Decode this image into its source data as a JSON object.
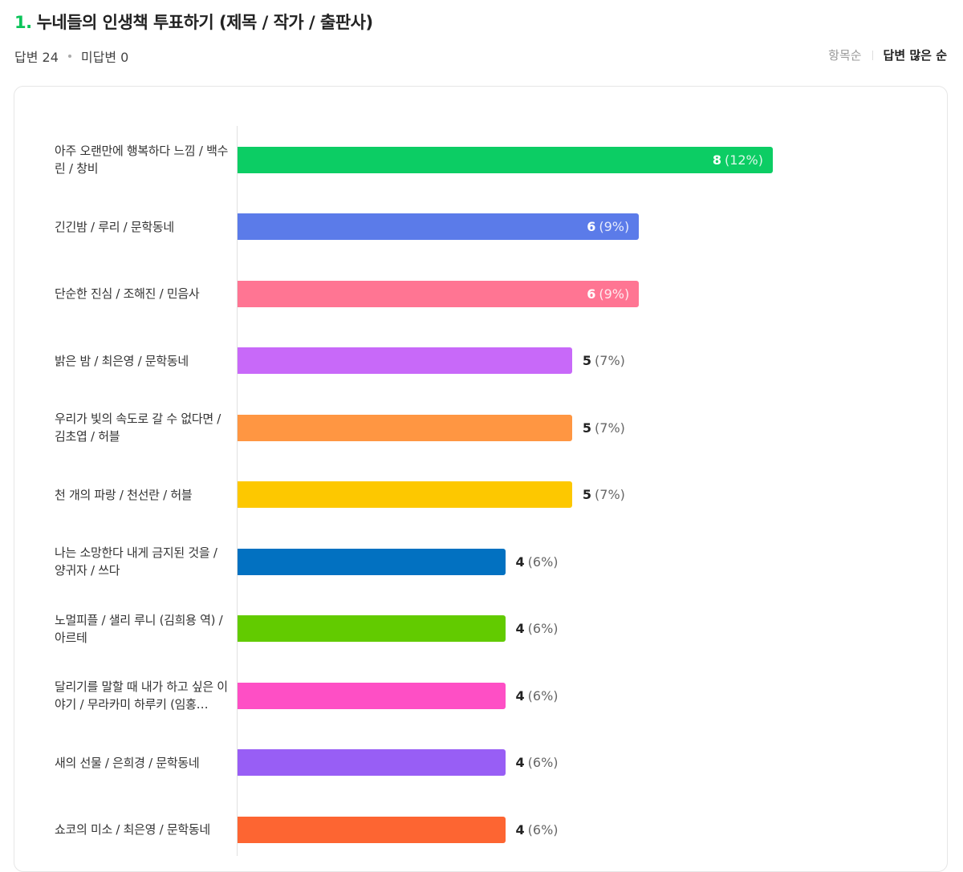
{
  "question": {
    "number": "1.",
    "title": "누네들의 인생책 투표하기 (제목 / 작가 / 출판사)"
  },
  "meta": {
    "answered": "답변 24",
    "unanswered": "미답변 0"
  },
  "sort": {
    "by_item": "항목순",
    "by_votes": "답변 많은 순",
    "selected": "답변 많은 순"
  },
  "chart_data": {
    "type": "bar",
    "orientation": "horizontal",
    "title": "",
    "xlabel": "",
    "ylabel": "",
    "categories": [
      "아주 오랜만에 행복하다 느낌 / 백수린 / 창비",
      "긴긴밤 / 루리 / 문학동네",
      "단순한 진심 / 조해진 / 민음사",
      "밝은 밤 / 최은영 / 문학동네",
      "우리가 빛의 속도로 갈 수 없다면 / 김초엽 / 허블",
      "천 개의 파랑 / 천선란 / 허블",
      "나는 소망한다 내게 금지된 것을 / 양귀자 / 쓰다",
      "노멀피플 / 샐리 루니 (김희용 역) / 아르테",
      "달리기를 말할 때 내가 하고 싶은 이야기 / 무라카미 하루키 (임홍…",
      "새의 선물 / 은희경 / 문학동네",
      "쇼코의 미소 / 최은영 / 문학동네"
    ],
    "values": [
      8,
      6,
      6,
      5,
      5,
      5,
      4,
      4,
      4,
      4,
      4
    ],
    "percents": [
      "(12%)",
      "(9%)",
      "(9%)",
      "(7%)",
      "(7%)",
      "(7%)",
      "(6%)",
      "(6%)",
      "(6%)",
      "(6%)",
      "(6%)"
    ],
    "colors": [
      "#0ccd64",
      "#5b7be9",
      "#ff7593",
      "#c869f9",
      "#ff9642",
      "#fdc800",
      "#0271c1",
      "#62cb00",
      "#fe4fc5",
      "#985ef5",
      "#fd6532"
    ],
    "value_label_inside": [
      true,
      true,
      true,
      false,
      false,
      false,
      false,
      false,
      false,
      false,
      false
    ],
    "xlim": [
      0,
      8
    ]
  }
}
